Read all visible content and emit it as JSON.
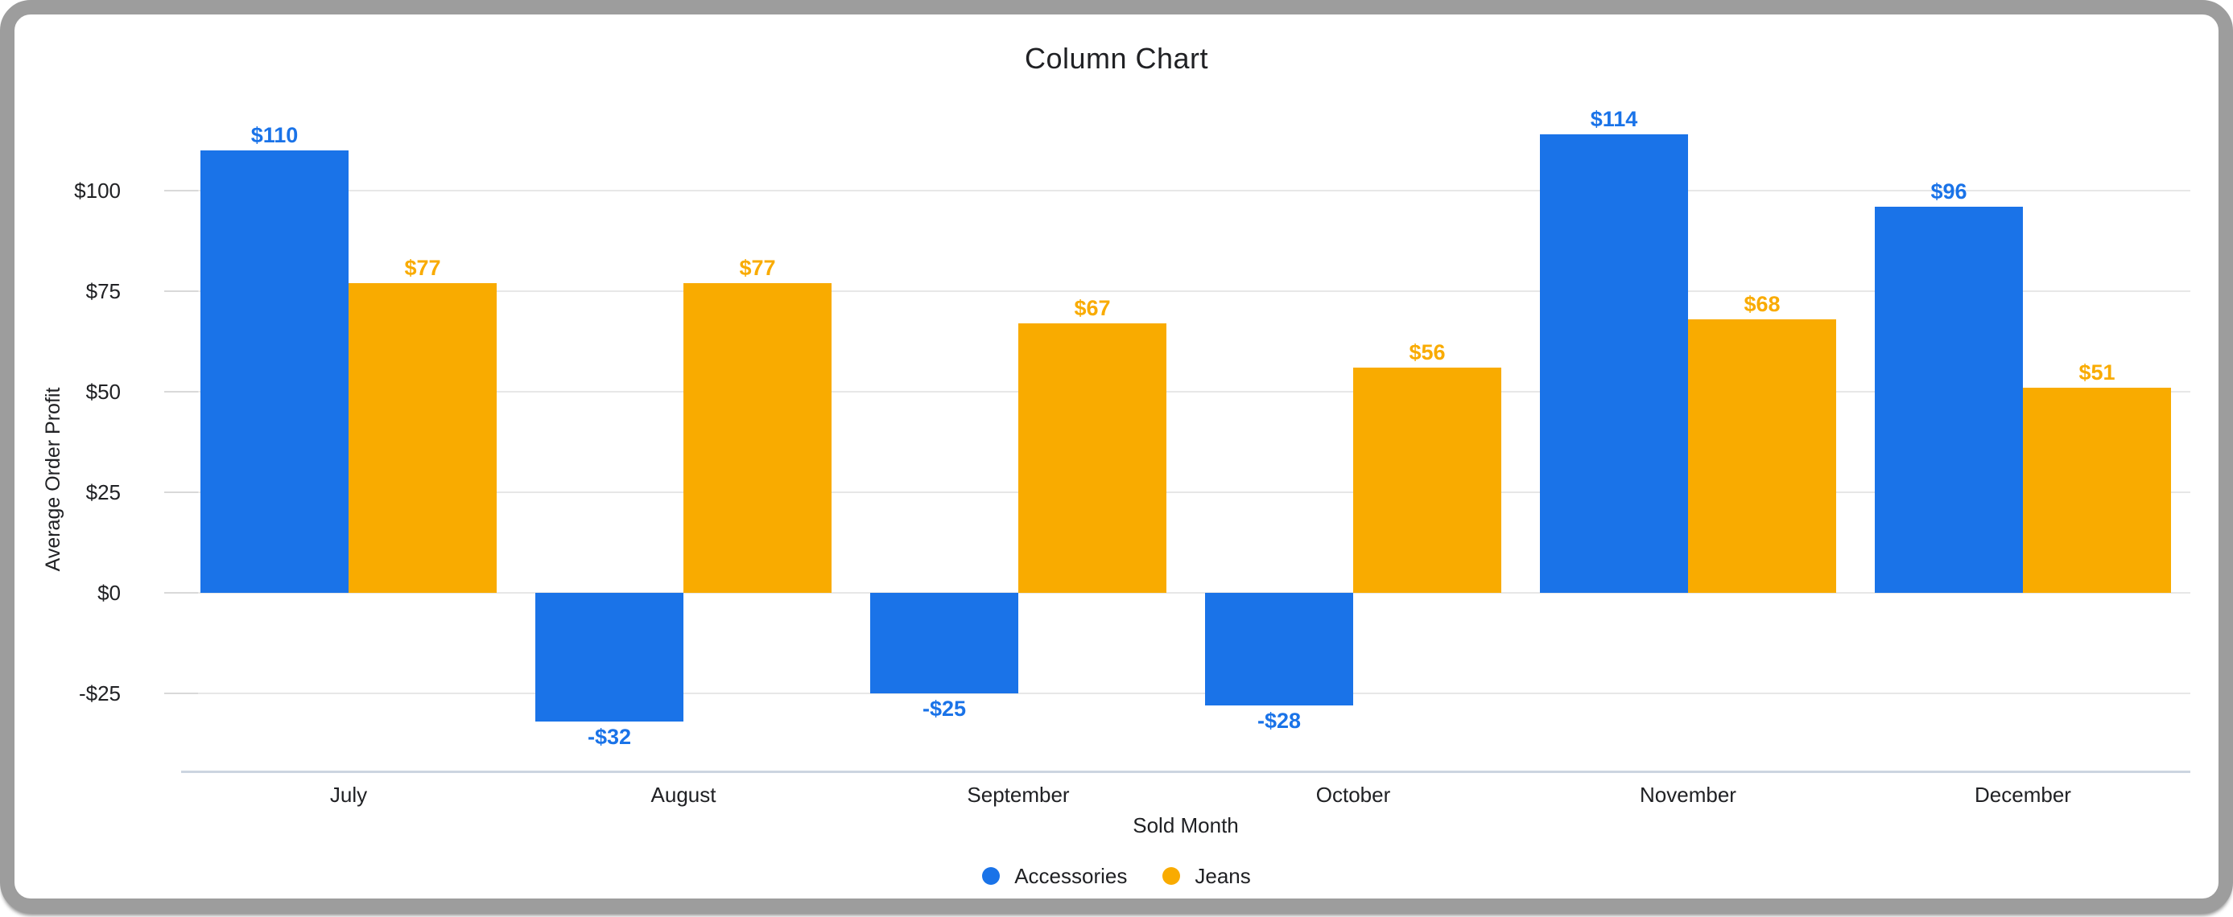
{
  "frame": {
    "border_color": "#9d9d9d",
    "background": "#ffffff"
  },
  "colors": {
    "accessories": "#1a73e8",
    "jeans": "#f9ab00",
    "text": "#202124",
    "gridline": "#e7e7e7",
    "tick": "#d9d9d9",
    "axis_line": "#ccd5e0"
  },
  "chart_data": {
    "type": "bar",
    "title": "Column Chart",
    "xlabel": "Sold Month",
    "ylabel": "Average Order Profit",
    "categories": [
      "July",
      "August",
      "September",
      "October",
      "November",
      "December"
    ],
    "series": [
      {
        "name": "Accessories",
        "color": "#1a73e8",
        "values": [
          110,
          -32,
          -25,
          -28,
          114,
          96
        ],
        "data_labels": [
          "$110",
          "-$32",
          "-$25",
          "-$28",
          "$114",
          "$96"
        ]
      },
      {
        "name": "Jeans",
        "color": "#f9ab00",
        "values": [
          77,
          77,
          67,
          56,
          68,
          51
        ],
        "data_labels": [
          "$77",
          "$77",
          "$67",
          "$56",
          "$68",
          "$51"
        ]
      }
    ],
    "y_ticks": [
      {
        "value": 100,
        "label": "$100"
      },
      {
        "value": 75,
        "label": "$75"
      },
      {
        "value": 50,
        "label": "$50"
      },
      {
        "value": 25,
        "label": "$25"
      },
      {
        "value": 0,
        "label": "$0"
      },
      {
        "value": -25,
        "label": "-$25"
      }
    ],
    "ylim": [
      -44,
      121
    ],
    "grid": true,
    "legend_position": "bottom"
  }
}
